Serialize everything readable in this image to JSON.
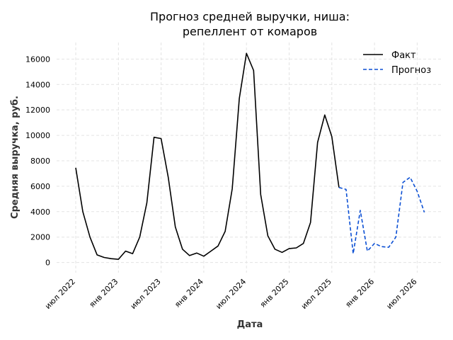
{
  "chart_data": {
    "type": "line",
    "title_lines": [
      "Прогноз средней выручки, ниша:",
      "репеллент от комаров"
    ],
    "xlabel": "Дата",
    "ylabel": "Средняя выручка, руб.",
    "ylim": [
      -800,
      17300
    ],
    "yticks": [
      0,
      2000,
      4000,
      6000,
      8000,
      10000,
      12000,
      14000,
      16000
    ],
    "xticks": [
      {
        "date": "2022-07",
        "label": "июл 2022"
      },
      {
        "date": "2023-01",
        "label": "янв 2023"
      },
      {
        "date": "2023-07",
        "label": "июл 2023"
      },
      {
        "date": "2024-01",
        "label": "янв 2024"
      },
      {
        "date": "2024-07",
        "label": "июл 2024"
      },
      {
        "date": "2025-01",
        "label": "янв 2025"
      },
      {
        "date": "2025-07",
        "label": "июл 2025"
      },
      {
        "date": "2026-01",
        "label": "янв 2026"
      },
      {
        "date": "2026-07",
        "label": "июл 2026"
      }
    ],
    "grid": true,
    "legend_position": "top-right",
    "series": [
      {
        "name": "Факт",
        "color": "#000000",
        "dash": "solid",
        "x": [
          "2022-07",
          "2022-08",
          "2022-09",
          "2022-10",
          "2022-11",
          "2022-12",
          "2023-01",
          "2023-02",
          "2023-03",
          "2023-04",
          "2023-05",
          "2023-06",
          "2023-07",
          "2023-08",
          "2023-09",
          "2023-10",
          "2023-11",
          "2023-12",
          "2024-01",
          "2024-02",
          "2024-03",
          "2024-04",
          "2024-05",
          "2024-06",
          "2024-07",
          "2024-08",
          "2024-09",
          "2024-10",
          "2024-11",
          "2024-12",
          "2025-01",
          "2025-02",
          "2025-03",
          "2025-04",
          "2025-05",
          "2025-06",
          "2025-07",
          "2025-08"
        ],
        "values": [
          7450,
          4000,
          2000,
          600,
          400,
          300,
          250,
          900,
          700,
          2000,
          4700,
          9850,
          9750,
          6700,
          2800,
          1050,
          550,
          750,
          500,
          900,
          1300,
          2450,
          5800,
          12900,
          16450,
          15100,
          5350,
          2100,
          1050,
          800,
          1100,
          1150,
          1500,
          3150,
          9450,
          11600,
          9900,
          5900
        ]
      },
      {
        "name": "Прогноз",
        "color": "#0b4fd4",
        "dash": "dashed",
        "x": [
          "2025-08",
          "2025-09",
          "2025-10",
          "2025-11",
          "2025-12",
          "2026-01",
          "2026-02",
          "2026-03",
          "2026-04",
          "2026-05",
          "2026-06",
          "2026-07",
          "2026-08"
        ],
        "values": [
          5900,
          5750,
          700,
          4100,
          900,
          1500,
          1250,
          1200,
          2000,
          6300,
          6700,
          5600,
          3950
        ]
      }
    ]
  }
}
